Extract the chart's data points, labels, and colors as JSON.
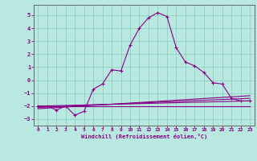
{
  "xlabel": "Windchill (Refroidissement éolien,°C)",
  "background_color": "#b8e8e0",
  "grid_color": "#88ccbb",
  "line_color": "#880088",
  "spine_color": "#666666",
  "xlim": [
    -0.5,
    23.5
  ],
  "ylim": [
    -3.5,
    5.8
  ],
  "yticks": [
    -3,
    -2,
    -1,
    0,
    1,
    2,
    3,
    4,
    5
  ],
  "xticks": [
    0,
    1,
    2,
    3,
    4,
    5,
    6,
    7,
    8,
    9,
    10,
    11,
    12,
    13,
    14,
    15,
    16,
    17,
    18,
    19,
    20,
    21,
    22,
    23
  ],
  "series1_x": [
    0,
    1,
    2,
    3,
    4,
    5,
    6,
    7,
    8,
    9,
    10,
    11,
    12,
    13,
    14,
    15,
    16,
    17,
    18,
    19,
    20,
    21,
    22,
    23
  ],
  "series1_y": [
    -2.0,
    -2.0,
    -2.3,
    -2.0,
    -2.7,
    -2.4,
    -0.7,
    -0.3,
    0.8,
    0.7,
    2.7,
    4.0,
    4.8,
    5.2,
    4.9,
    2.5,
    1.4,
    1.1,
    0.6,
    -0.2,
    -0.3,
    -1.4,
    -1.6,
    -1.6
  ],
  "series2_x": [
    0,
    23
  ],
  "series2_y": [
    -2.0,
    -1.6
  ],
  "series3_x": [
    0,
    23
  ],
  "series3_y": [
    -2.1,
    -1.4
  ],
  "series4_x": [
    0,
    23
  ],
  "series4_y": [
    -2.2,
    -1.2
  ],
  "series5_x": [
    0,
    23
  ],
  "series5_y": [
    -2.0,
    -2.0
  ]
}
